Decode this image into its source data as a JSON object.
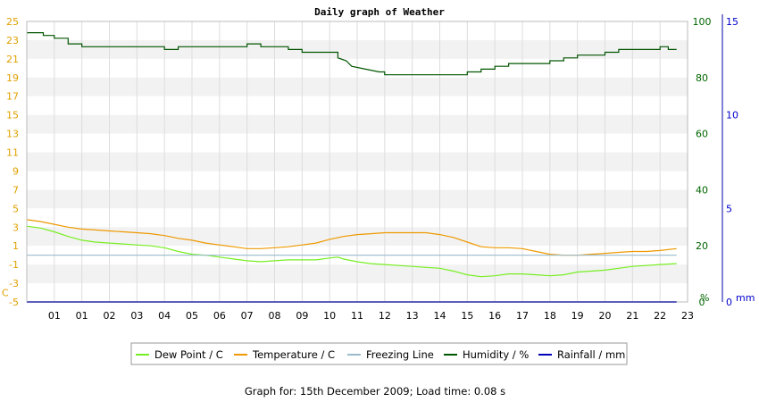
{
  "chart_data": {
    "type": "line",
    "title": "Daily graph of Weather",
    "x_tick_labels": [
      "01",
      "01",
      "02",
      "03",
      "04",
      "05",
      "06",
      "07",
      "08",
      "09",
      "10",
      "11",
      "12",
      "13",
      "14",
      "15",
      "16",
      "17",
      "18",
      "19",
      "20",
      "21",
      "22",
      "23"
    ],
    "x_range": [
      0,
      24
    ],
    "left_axis": {
      "unit_label": "C",
      "ticks": [
        25,
        23,
        21,
        19,
        17,
        15,
        13,
        11,
        9,
        7,
        5,
        3,
        1,
        -1,
        -3,
        -5
      ],
      "range": [
        -5,
        25
      ],
      "color": "#e0a000"
    },
    "right_axis_humidity": {
      "unit_label": "%",
      "ticks": [
        100,
        80,
        60,
        40,
        20,
        0
      ],
      "range": [
        0,
        100
      ],
      "color": "#006600"
    },
    "right_axis_rainfall": {
      "unit_label": "mm",
      "ticks": [
        15,
        10,
        5,
        0
      ],
      "range": [
        0,
        15
      ],
      "color": "#0000cc"
    },
    "series": [
      {
        "name": "Dew Point / C",
        "axis": "left",
        "color": "#77ee22",
        "points": [
          [
            0,
            3.1
          ],
          [
            0.5,
            2.9
          ],
          [
            1,
            2.5
          ],
          [
            1.5,
            2.0
          ],
          [
            2,
            1.6
          ],
          [
            2.5,
            1.4
          ],
          [
            3,
            1.3
          ],
          [
            3.5,
            1.2
          ],
          [
            4,
            1.1
          ],
          [
            4.5,
            1.0
          ],
          [
            5,
            0.8
          ],
          [
            5.5,
            0.4
          ],
          [
            6,
            0.1
          ],
          [
            6.5,
            0.0
          ],
          [
            7,
            -0.2
          ],
          [
            7.5,
            -0.4
          ],
          [
            8,
            -0.6
          ],
          [
            8.5,
            -0.7
          ],
          [
            9,
            -0.6
          ],
          [
            9.5,
            -0.5
          ],
          [
            10,
            -0.5
          ],
          [
            10.5,
            -0.5
          ],
          [
            11,
            -0.3
          ],
          [
            11.3,
            -0.2
          ],
          [
            11.5,
            -0.4
          ],
          [
            12,
            -0.7
          ],
          [
            12.5,
            -0.9
          ],
          [
            13,
            -1.0
          ],
          [
            13.5,
            -1.1
          ],
          [
            14,
            -1.2
          ],
          [
            14.5,
            -1.3
          ],
          [
            15,
            -1.4
          ],
          [
            15.5,
            -1.7
          ],
          [
            16,
            -2.1
          ],
          [
            16.5,
            -2.3
          ],
          [
            17,
            -2.2
          ],
          [
            17.5,
            -2.0
          ],
          [
            18,
            -2.0
          ],
          [
            18.5,
            -2.1
          ],
          [
            19,
            -2.2
          ],
          [
            19.5,
            -2.1
          ],
          [
            20,
            -1.8
          ],
          [
            20.5,
            -1.7
          ],
          [
            21,
            -1.6
          ],
          [
            21.5,
            -1.4
          ],
          [
            22,
            -1.2
          ],
          [
            22.5,
            -1.1
          ],
          [
            23,
            -1.0
          ],
          [
            23.6,
            -0.9
          ]
        ]
      },
      {
        "name": "Temperature / C",
        "axis": "left",
        "color": "#ee9900",
        "points": [
          [
            0,
            3.8
          ],
          [
            0.5,
            3.6
          ],
          [
            1,
            3.3
          ],
          [
            1.5,
            3.0
          ],
          [
            2,
            2.8
          ],
          [
            2.5,
            2.7
          ],
          [
            3,
            2.6
          ],
          [
            3.5,
            2.5
          ],
          [
            4,
            2.4
          ],
          [
            4.5,
            2.3
          ],
          [
            5,
            2.1
          ],
          [
            5.5,
            1.8
          ],
          [
            6,
            1.6
          ],
          [
            6.5,
            1.3
          ],
          [
            7,
            1.1
          ],
          [
            7.5,
            0.9
          ],
          [
            8,
            0.7
          ],
          [
            8.5,
            0.7
          ],
          [
            9,
            0.8
          ],
          [
            9.5,
            0.9
          ],
          [
            10,
            1.1
          ],
          [
            10.5,
            1.3
          ],
          [
            11,
            1.7
          ],
          [
            11.5,
            2.0
          ],
          [
            12,
            2.2
          ],
          [
            12.5,
            2.3
          ],
          [
            13,
            2.4
          ],
          [
            13.5,
            2.4
          ],
          [
            14,
            2.4
          ],
          [
            14.5,
            2.4
          ],
          [
            15,
            2.2
          ],
          [
            15.5,
            1.9
          ],
          [
            16,
            1.4
          ],
          [
            16.5,
            0.9
          ],
          [
            17,
            0.8
          ],
          [
            17.5,
            0.8
          ],
          [
            18,
            0.7
          ],
          [
            18.5,
            0.4
          ],
          [
            19,
            0.1
          ],
          [
            19.5,
            0.0
          ],
          [
            20,
            0.0
          ],
          [
            20.5,
            0.1
          ],
          [
            21,
            0.2
          ],
          [
            21.5,
            0.3
          ],
          [
            22,
            0.4
          ],
          [
            22.5,
            0.4
          ],
          [
            23,
            0.5
          ],
          [
            23.6,
            0.7
          ]
        ]
      },
      {
        "name": "Freezing Line",
        "axis": "left",
        "color": "#99bbcc",
        "points": [
          [
            0,
            0
          ],
          [
            23.6,
            0
          ]
        ]
      },
      {
        "name": "Humidity / %",
        "axis": "right_humidity",
        "color": "#005500",
        "points": [
          [
            0,
            96
          ],
          [
            0.6,
            96
          ],
          [
            0.6,
            95
          ],
          [
            1,
            95
          ],
          [
            1,
            94
          ],
          [
            1.5,
            94
          ],
          [
            1.5,
            92
          ],
          [
            2,
            92
          ],
          [
            2,
            91
          ],
          [
            5,
            91
          ],
          [
            5,
            90
          ],
          [
            5.5,
            90
          ],
          [
            5.5,
            91
          ],
          [
            8,
            91
          ],
          [
            8,
            92
          ],
          [
            8.5,
            92
          ],
          [
            8.5,
            91
          ],
          [
            9.5,
            91
          ],
          [
            9.5,
            90
          ],
          [
            10,
            90
          ],
          [
            10,
            89
          ],
          [
            11.3,
            89
          ],
          [
            11.3,
            87
          ],
          [
            11.6,
            86
          ],
          [
            11.8,
            84
          ],
          [
            12.3,
            83
          ],
          [
            12.8,
            82
          ],
          [
            13,
            82
          ],
          [
            13,
            81
          ],
          [
            14,
            81
          ],
          [
            16,
            81
          ],
          [
            16,
            82
          ],
          [
            16.5,
            82
          ],
          [
            16.5,
            83
          ],
          [
            17,
            83
          ],
          [
            17,
            84
          ],
          [
            17.5,
            84
          ],
          [
            17.5,
            85
          ],
          [
            19,
            85
          ],
          [
            19,
            86
          ],
          [
            19.5,
            86
          ],
          [
            19.5,
            87
          ],
          [
            20,
            87
          ],
          [
            20,
            88
          ],
          [
            21,
            88
          ],
          [
            21,
            89
          ],
          [
            21.5,
            89
          ],
          [
            21.5,
            90
          ],
          [
            23,
            90
          ],
          [
            23,
            91
          ],
          [
            23.3,
            91
          ],
          [
            23.3,
            90
          ],
          [
            23.6,
            90
          ]
        ]
      },
      {
        "name": "Rainfall / mm",
        "axis": "right_rainfall",
        "color": "#0000bb",
        "points": [
          [
            0,
            0
          ],
          [
            23.6,
            0
          ]
        ]
      }
    ],
    "grid": true,
    "legend_position": "bottom"
  },
  "footer": {
    "text": "Graph for: 15th December 2009; Load time: 0.08 s"
  }
}
